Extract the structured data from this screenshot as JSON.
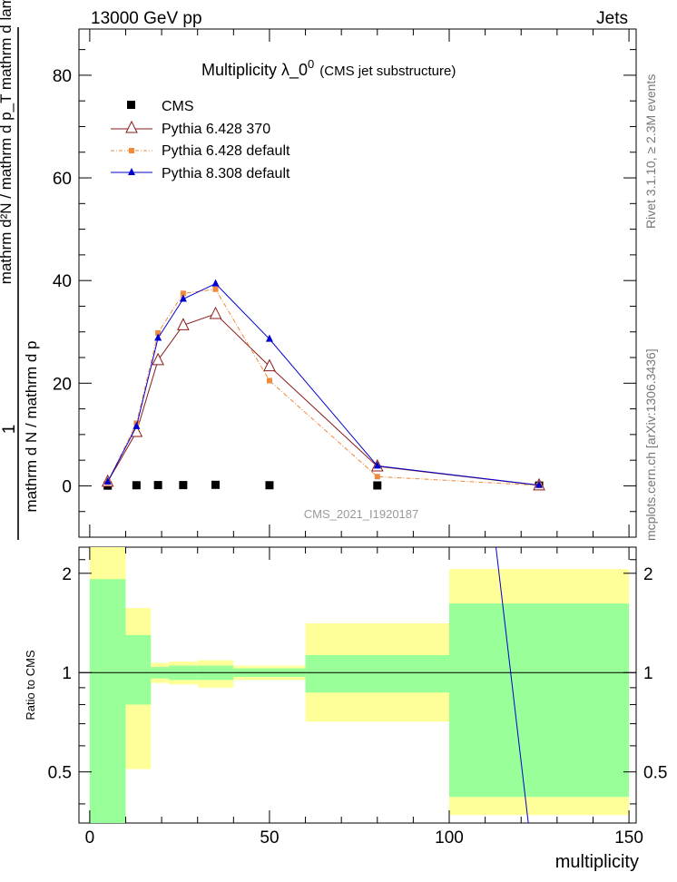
{
  "header": {
    "left": "13000 GeV pp",
    "right": "Jets"
  },
  "side_text": {
    "rivet": "Rivet 3.1.10, ≥ 2.3M events",
    "mcplots": "mcplots.cern.ch [arXiv:1306.3436]"
  },
  "main_plot": {
    "title": "Multiplicity  λ_0",
    "title_sup": "0",
    "title_suffix": "(CMS jet substructure)",
    "analysis_label": "CMS_2021_I1920187",
    "ylabel_numerator": "1",
    "ylabel_denominator": "mathrm d N / mathrm d p",
    "ylabel_full": "mathrm d²N / mathrm d p_T mathrm d lambda",
    "y_ticks": [
      "0",
      "20",
      "40",
      "60",
      "80"
    ]
  },
  "ratio_plot": {
    "ylabel": "Ratio to CMS",
    "y_ticks_left": [
      "0.5",
      "1",
      "2"
    ],
    "y_ticks_right": [
      "0.5",
      "1",
      "2"
    ],
    "x_ticks": [
      "0",
      "50",
      "100",
      "150"
    ],
    "xlabel": "multiplicity"
  },
  "legend": [
    {
      "label": "CMS",
      "color": "#000000",
      "marker": "square"
    },
    {
      "label": "Pythia 6.428 370",
      "color": "#8b1a1a",
      "marker": "open-triangle"
    },
    {
      "label": "Pythia 6.428 default",
      "color": "#f08a3c",
      "marker": "small-square"
    },
    {
      "label": "Pythia 8.308 default",
      "color": "#0000cc",
      "marker": "triangle"
    }
  ],
  "chart_data": [
    {
      "type": "line",
      "title": "Multiplicity λ_0^0 (CMS jet substructure)",
      "xlabel": "multiplicity",
      "ylabel": "1 / mathrm d N / mathrm d p_T  mathrm d²N / mathrm d p_T mathrm d lambda",
      "xlim": [
        -3,
        152
      ],
      "ylim": [
        -10,
        89
      ],
      "series": [
        {
          "name": "CMS",
          "x": [
            5,
            13,
            19,
            26,
            35,
            50,
            80,
            125
          ],
          "y": [
            0.05,
            0.12,
            0.15,
            0.15,
            0.2,
            0.12,
            0.08,
            0.05
          ]
        },
        {
          "name": "Pythia 6.428 370",
          "x": [
            5,
            13,
            19,
            26,
            35,
            50,
            80,
            125
          ],
          "y": [
            0.8,
            10.5,
            24.5,
            31.3,
            33.5,
            23.3,
            3.8,
            0.1
          ]
        },
        {
          "name": "Pythia 6.428 default",
          "x": [
            5,
            13,
            19,
            26,
            35,
            50,
            80,
            125
          ],
          "y": [
            0.7,
            12.2,
            29.8,
            37.5,
            38.3,
            20.5,
            1.8,
            0.1
          ]
        },
        {
          "name": "Pythia 8.308 default",
          "x": [
            5,
            13,
            19,
            26,
            35,
            50,
            80,
            125
          ],
          "y": [
            0.8,
            11.6,
            28.8,
            36.4,
            39.4,
            28.6,
            3.9,
            0.15
          ]
        }
      ]
    },
    {
      "type": "area",
      "ylabel": "Ratio to CMS",
      "xlabel": "multiplicity",
      "xlim": [
        -3,
        152
      ],
      "ylim": [
        0.35,
        2.4
      ],
      "log_y": true,
      "bands": [
        {
          "x": [
            0,
            10
          ],
          "green": [
            0.35,
            1.92
          ],
          "yellow": [
            0.35,
            2.4
          ]
        },
        {
          "x": [
            10,
            17
          ],
          "green": [
            0.8,
            1.3
          ],
          "yellow": [
            0.51,
            1.57
          ]
        },
        {
          "x": [
            17,
            22
          ],
          "green": [
            0.96,
            1.04
          ],
          "yellow": [
            0.93,
            1.07
          ]
        },
        {
          "x": [
            22,
            30
          ],
          "green": [
            0.95,
            1.05
          ],
          "yellow": [
            0.92,
            1.08
          ]
        },
        {
          "x": [
            30,
            40
          ],
          "green": [
            0.95,
            1.05
          ],
          "yellow": [
            0.9,
            1.09
          ]
        },
        {
          "x": [
            40,
            60
          ],
          "green": [
            0.97,
            1.03
          ],
          "yellow": [
            0.95,
            1.05
          ]
        },
        {
          "x": [
            60,
            100
          ],
          "green": [
            0.87,
            1.13
          ],
          "yellow": [
            0.71,
            1.41
          ]
        },
        {
          "x": [
            100,
            150
          ],
          "green": [
            0.42,
            1.62
          ],
          "yellow": [
            0.37,
            2.06
          ]
        }
      ],
      "reference_line": 1,
      "series": [
        {
          "name": "Pythia 8.308 default",
          "x": [
            113,
            122
          ],
          "y": [
            2.4,
            0.35
          ]
        }
      ]
    }
  ]
}
